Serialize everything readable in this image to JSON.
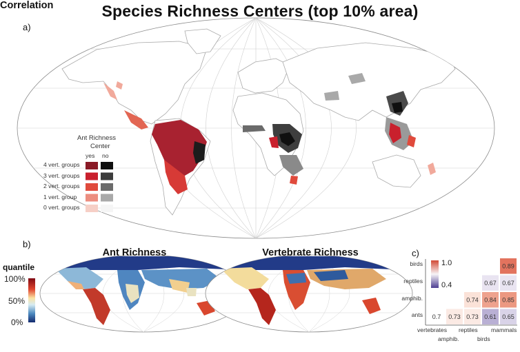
{
  "title": "Species Richness Centers (top 10% area)",
  "panel_labels": {
    "a": "a)",
    "b": "b)",
    "c": "c)"
  },
  "legend": {
    "heading": "Ant Richness",
    "subheading": "Center",
    "col_yes": "yes",
    "col_no": "no",
    "rows": [
      {
        "label": "4 vert. groups",
        "yes_color": "#8a1a26",
        "no_color": "#0f0f0f"
      },
      {
        "label": "3 vert. groups",
        "yes_color": "#c9202d",
        "no_color": "#3c3c3c"
      },
      {
        "label": "2 vert. groups",
        "yes_color": "#e04a3c",
        "no_color": "#6b6b6b"
      },
      {
        "label": "1 vert. group",
        "yes_color": "#ec8e80",
        "no_color": "#a9a9a9"
      },
      {
        "label": "0 vert. groups",
        "yes_color": "#f6cfc6",
        "no_color": "#f5f5f5"
      }
    ]
  },
  "maps_b": {
    "ant_title": "Ant Richness",
    "vert_title": "Vertebrate Richness",
    "quantile_label": "quantile",
    "quantile_ticks": [
      "100%",
      "50%",
      "0%"
    ]
  },
  "correlation": {
    "title": "Correlation",
    "colorbar_ticks": [
      "1.0",
      "0.4"
    ],
    "row_labels": [
      "birds",
      "reptiles",
      "amphib.",
      "ants"
    ],
    "col_labels": [
      "vertebrates",
      "amphib.",
      "reptiles",
      "birds",
      "mammals"
    ],
    "cells": [
      {
        "row": 0,
        "col": 4,
        "value": "0.89",
        "color": "#e2735e"
      },
      {
        "row": 1,
        "col": 3,
        "value": "0.67",
        "color": "#e9e4f1"
      },
      {
        "row": 1,
        "col": 4,
        "value": "0.67",
        "color": "#e9e4f1"
      },
      {
        "row": 2,
        "col": 2,
        "value": "0.74",
        "color": "#fbe2d8"
      },
      {
        "row": 2,
        "col": 3,
        "value": "0.84",
        "color": "#eea28e"
      },
      {
        "row": 2,
        "col": 4,
        "value": "0.85",
        "color": "#ec9881"
      },
      {
        "row": 3,
        "col": 0,
        "value": "0.7",
        "color": "#ffffff"
      },
      {
        "row": 3,
        "col": 1,
        "value": "0.73",
        "color": "#fbeae4"
      },
      {
        "row": 3,
        "col": 2,
        "value": "0.73",
        "color": "#fbeae4"
      },
      {
        "row": 3,
        "col": 3,
        "value": "0.61",
        "color": "#b9b0d4"
      },
      {
        "row": 3,
        "col": 4,
        "value": "0.65",
        "color": "#d9d3e8"
      }
    ]
  }
}
